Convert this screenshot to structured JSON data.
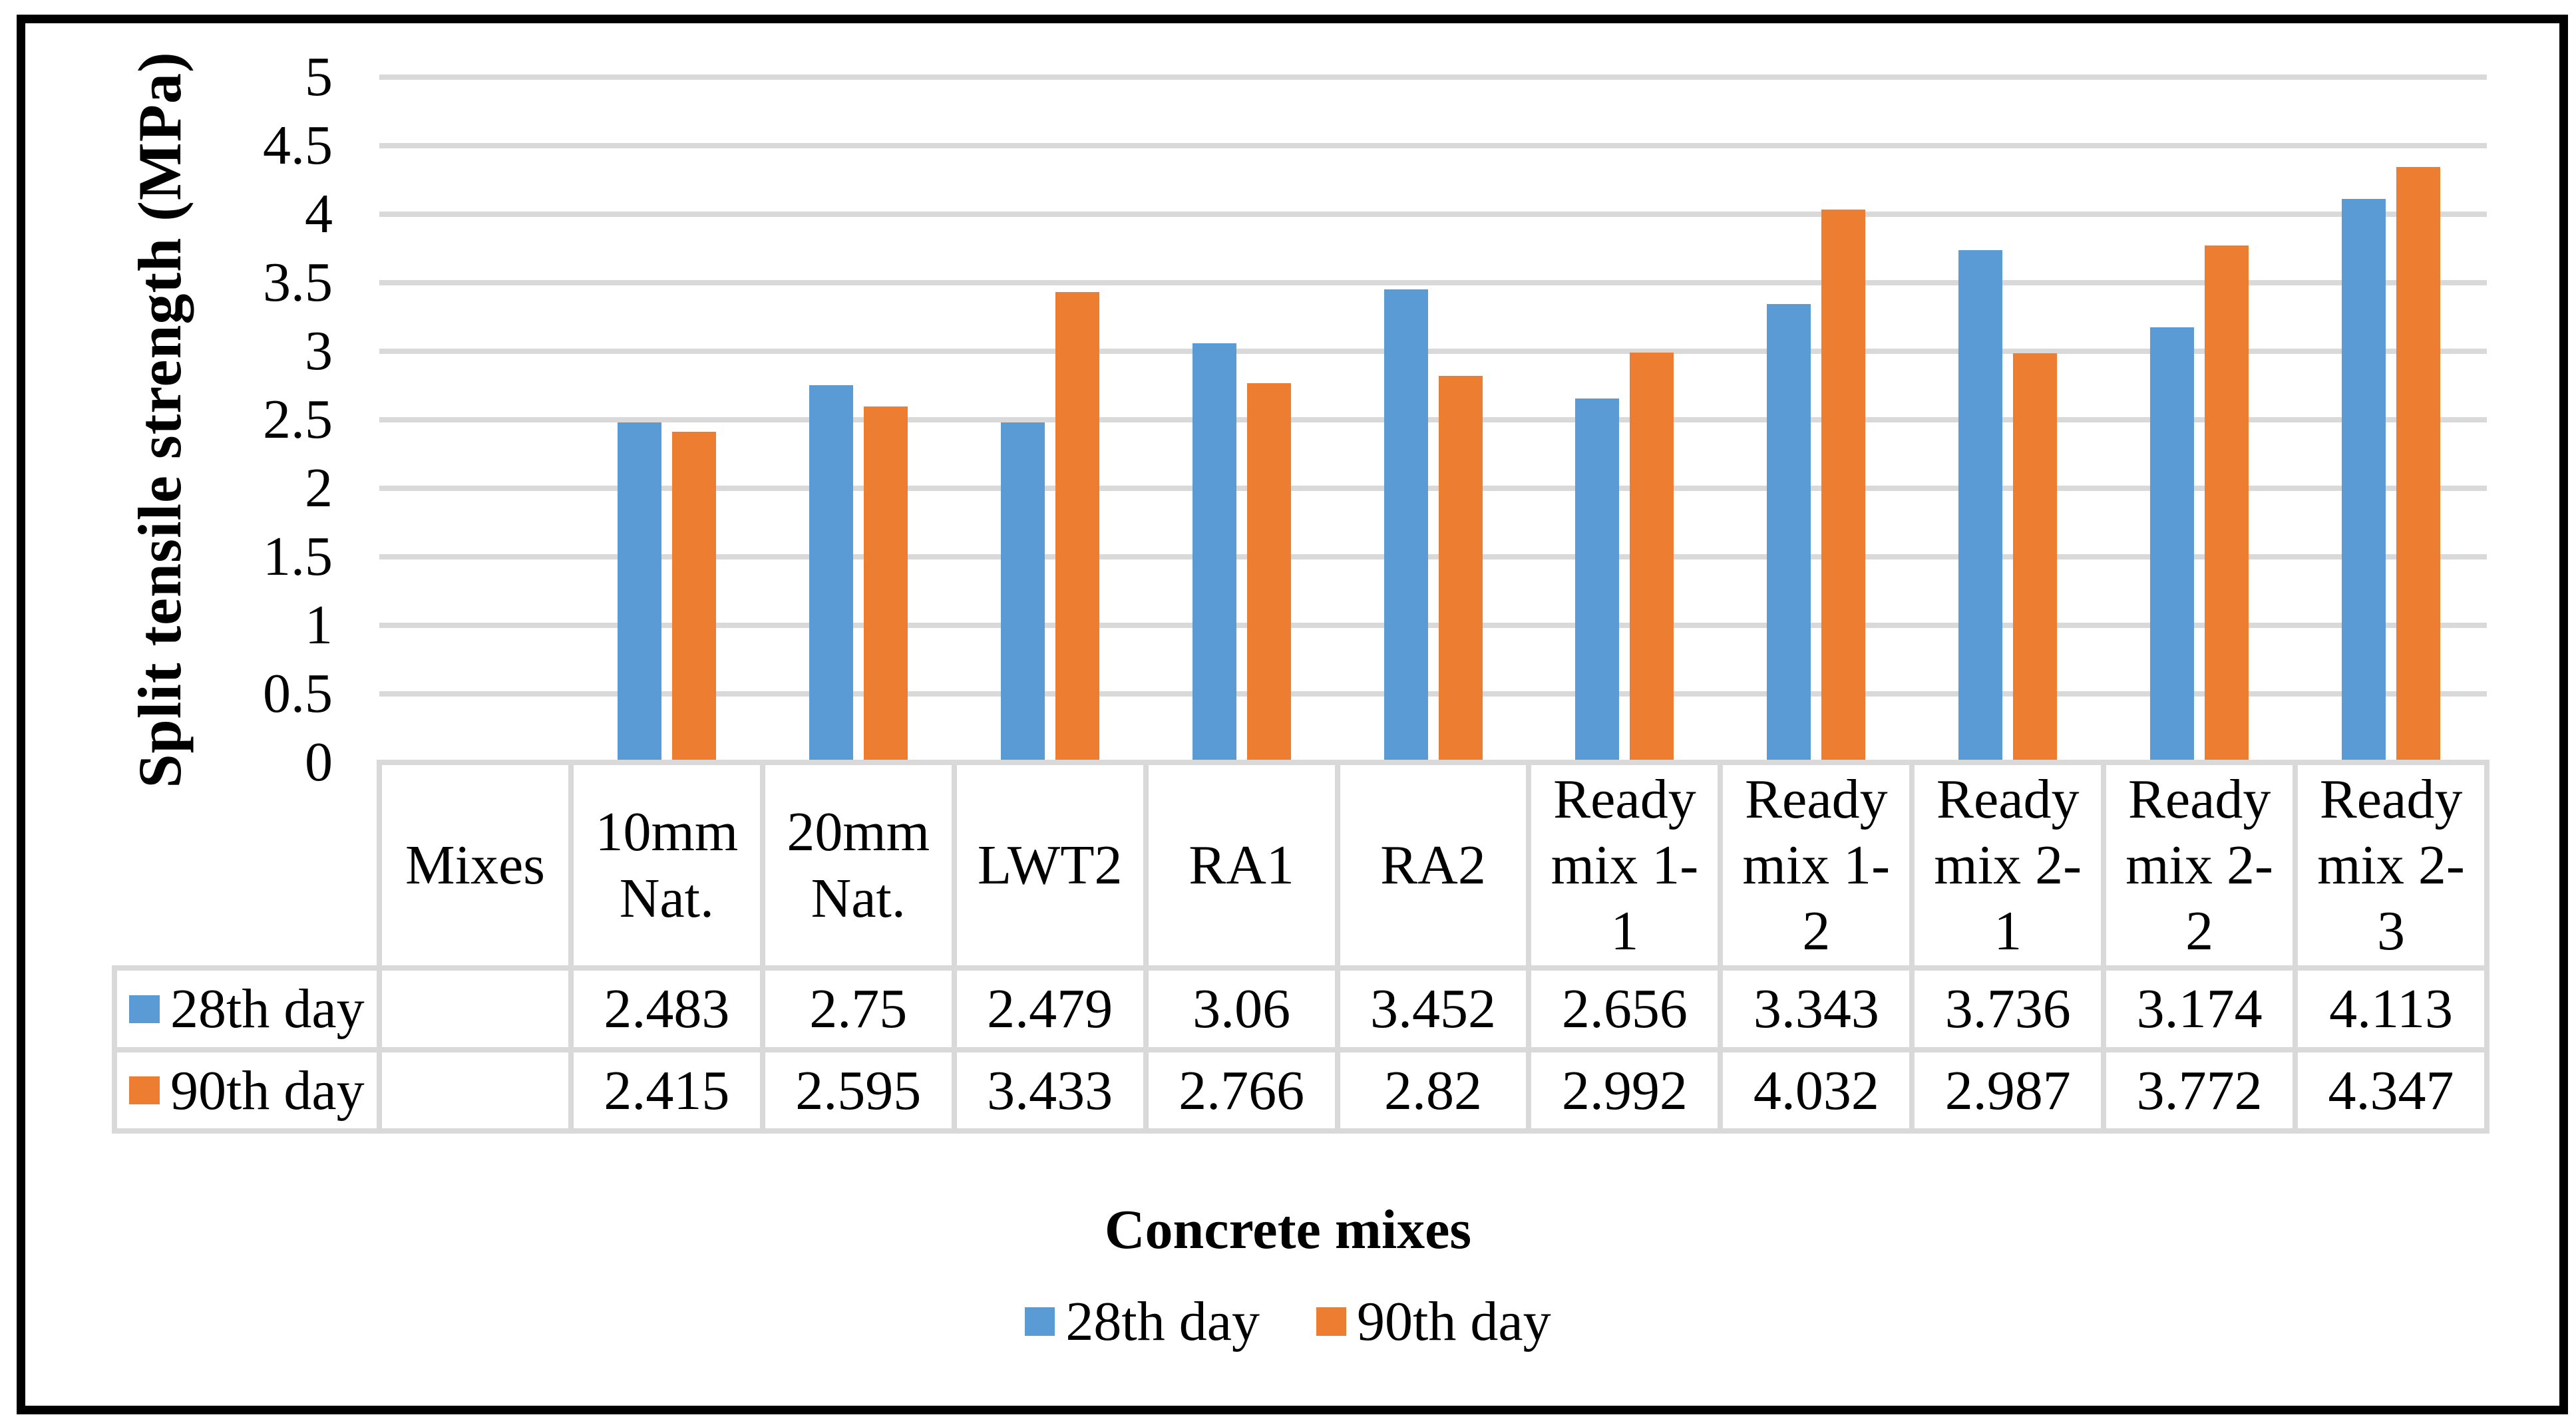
{
  "chart_data": {
    "type": "bar",
    "title": "",
    "ylabel": "Split tensile strength (MPa)",
    "xlabel": "Concrete mixes",
    "ylim": [
      0,
      5
    ],
    "ytick_step": 0.5,
    "y_tick_labels": [
      "0",
      "0.5",
      "1",
      "1.5",
      "2",
      "2.5",
      "3",
      "3.5",
      "4",
      "4.5",
      "5"
    ],
    "grid": true,
    "legend_position": "bottom",
    "legend_entries": [
      "28th day",
      "90th day"
    ],
    "categories": [
      "Mixes",
      "10mm Nat.",
      "20mm Nat.",
      "LWT2",
      "RA1",
      "RA2",
      "Ready mix 1-1",
      "Ready mix 1-2",
      "Ready mix 2-1",
      "Ready mix 2-2",
      "Ready mix 2-3"
    ],
    "category_display_lines": [
      [
        "Mixes"
      ],
      [
        "10mm",
        "Nat."
      ],
      [
        "20mm",
        "Nat."
      ],
      [
        "LWT2"
      ],
      [
        "RA1"
      ],
      [
        "RA2"
      ],
      [
        "Ready",
        "mix 1-",
        "1"
      ],
      [
        "Ready",
        "mix 1-",
        "2"
      ],
      [
        "Ready",
        "mix 2-",
        "1"
      ],
      [
        "Ready",
        "mix 2-",
        "2"
      ],
      [
        "Ready",
        "mix 2-",
        "3"
      ]
    ],
    "series": [
      {
        "name": "28th day",
        "color": "#5B9BD5",
        "values": [
          null,
          2.483,
          2.75,
          2.479,
          3.06,
          3.452,
          2.656,
          3.343,
          3.736,
          3.174,
          4.113
        ]
      },
      {
        "name": "90th day",
        "color": "#ED7D31",
        "values": [
          null,
          2.415,
          2.595,
          3.433,
          2.766,
          2.82,
          2.992,
          4.032,
          2.987,
          3.772,
          4.347
        ]
      }
    ],
    "data_table": {
      "shown": true,
      "row_labels": [
        "28th day",
        "90th day"
      ],
      "rows": [
        [
          "",
          "2.483",
          "2.75",
          "2.479",
          "3.06",
          "3.452",
          "2.656",
          "3.343",
          "3.736",
          "3.174",
          "4.113"
        ],
        [
          "",
          "2.415",
          "2.595",
          "3.433",
          "2.766",
          "2.82",
          "2.992",
          "4.032",
          "2.987",
          "3.772",
          "4.347"
        ]
      ]
    }
  },
  "colors": {
    "bar_series_1": "#5B9BD5",
    "bar_series_2": "#ED7D31",
    "gridline": "#D9D9D9",
    "table_border": "#D9D9D9",
    "figure_border": "#000000",
    "background": "#FFFFFF",
    "text": "#000000"
  }
}
